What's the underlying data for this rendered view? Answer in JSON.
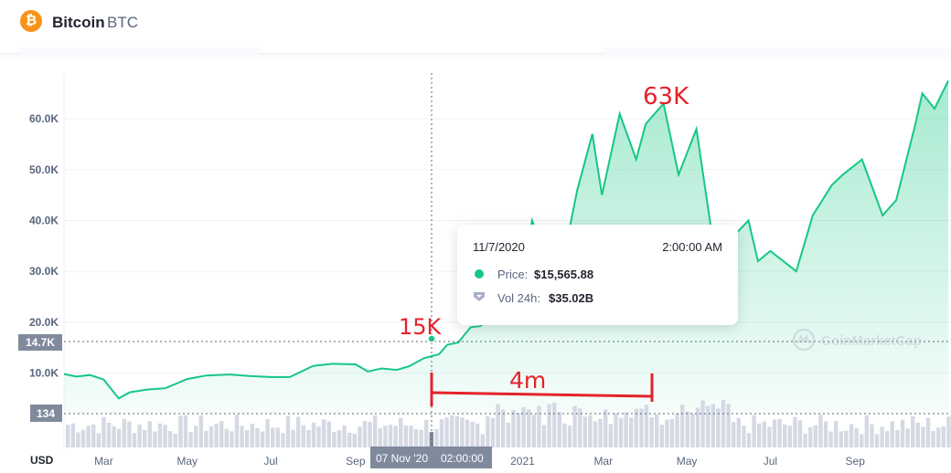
{
  "header": {
    "coin_name": "Bitcoin",
    "coin_symbol": "BTC",
    "logo_glyph": "₿"
  },
  "tooltip": {
    "date": "11/7/2020",
    "time": "2:00:00 AM",
    "price_label": "Price:",
    "price_value": "$15,565.88",
    "volume_label": "Vol 24h:",
    "volume_value": "$35.02B"
  },
  "watermark": "CoinMarketCap",
  "colors": {
    "accent": "#16c784",
    "annotation": "#e5222b",
    "axis_badge": "#808a9d"
  },
  "chart_data": {
    "type": "area",
    "currency_label": "USD",
    "y_ticks": [
      "10.0K",
      "20.0K",
      "30.0K",
      "40.0K",
      "50.0K",
      "60.0K"
    ],
    "y_tick_values": [
      10000,
      20000,
      30000,
      40000,
      50000,
      60000
    ],
    "ylim": [
      2000,
      69000
    ],
    "x_ticks": [
      "Mar",
      "May",
      "Jul",
      "Sep",
      "2021",
      "Mar",
      "May",
      "Jul",
      "Sep"
    ],
    "x_tick_dates": [
      "2020-03-01",
      "2020-05-01",
      "2020-07-01",
      "2020-09-01",
      "2021-01-01",
      "2021-03-01",
      "2021-05-01",
      "2021-07-01",
      "2021-09-01"
    ],
    "x_range": [
      "2020-02-01",
      "2021-11-10"
    ],
    "crosshair": {
      "date_label": "07 Nov '20",
      "time_label": "02:00:00",
      "price_badge": "14.7K",
      "volume_badge": "134"
    },
    "series": [
      {
        "price": [
          [
            "2020-02-01",
            9800
          ],
          [
            "2020-02-10",
            9300
          ],
          [
            "2020-02-20",
            9600
          ],
          [
            "2020-03-01",
            8700
          ],
          [
            "2020-03-12",
            5000
          ],
          [
            "2020-03-20",
            6200
          ],
          [
            "2020-04-01",
            6700
          ],
          [
            "2020-04-15",
            7000
          ],
          [
            "2020-05-01",
            8800
          ],
          [
            "2020-05-15",
            9500
          ],
          [
            "2020-06-01",
            9700
          ],
          [
            "2020-06-15",
            9400
          ],
          [
            "2020-07-01",
            9200
          ],
          [
            "2020-07-15",
            9200
          ],
          [
            "2020-08-01",
            11400
          ],
          [
            "2020-08-15",
            11800
          ],
          [
            "2020-09-01",
            11700
          ],
          [
            "2020-09-10",
            10300
          ],
          [
            "2020-09-20",
            10900
          ],
          [
            "2020-10-01",
            10600
          ],
          [
            "2020-10-10",
            11300
          ],
          [
            "2020-10-21",
            12900
          ],
          [
            "2020-11-01",
            13700
          ],
          [
            "2020-11-07",
            15566
          ],
          [
            "2020-11-15",
            16000
          ],
          [
            "2020-11-24",
            19000
          ],
          [
            "2020-12-01",
            19200
          ],
          [
            "2020-12-17",
            23000
          ],
          [
            "2021-01-01",
            29000
          ],
          [
            "2021-01-08",
            40000
          ],
          [
            "2021-01-21",
            31000
          ],
          [
            "2021-02-01",
            34000
          ],
          [
            "2021-02-10",
            46000
          ],
          [
            "2021-02-21",
            57000
          ],
          [
            "2021-02-28",
            45000
          ],
          [
            "2021-03-13",
            61000
          ],
          [
            "2021-03-25",
            52000
          ],
          [
            "2021-04-01",
            59000
          ],
          [
            "2021-04-14",
            63000
          ],
          [
            "2021-04-25",
            49000
          ],
          [
            "2021-05-08",
            58000
          ],
          [
            "2021-05-19",
            38000
          ],
          [
            "2021-06-01",
            36000
          ],
          [
            "2021-06-15",
            40000
          ],
          [
            "2021-06-22",
            32000
          ],
          [
            "2021-07-01",
            34000
          ],
          [
            "2021-07-20",
            30000
          ],
          [
            "2021-08-01",
            41000
          ],
          [
            "2021-08-15",
            47000
          ],
          [
            "2021-08-23",
            49000
          ],
          [
            "2021-09-06",
            52000
          ],
          [
            "2021-09-21",
            41000
          ],
          [
            "2021-10-01",
            44000
          ],
          [
            "2021-10-15",
            59000
          ],
          [
            "2021-10-20",
            65000
          ],
          [
            "2021-10-29",
            62000
          ],
          [
            "2021-11-08",
            67500
          ]
        ]
      }
    ],
    "volume_note": "volume bars shown at bottom, highlighted bar at crosshair date"
  },
  "annotations": {
    "peak": "63K",
    "point": "15K",
    "span": "4m"
  }
}
